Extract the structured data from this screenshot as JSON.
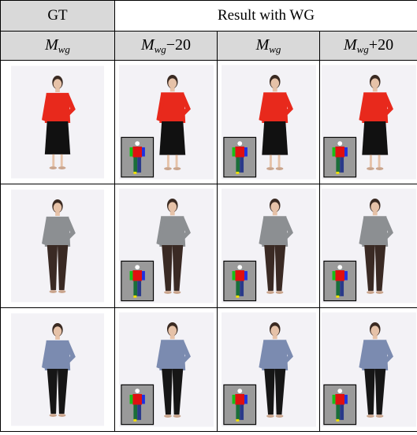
{
  "header": {
    "gt": "GT",
    "result": "Result with WG"
  },
  "subheaders": [
    {
      "base": "M",
      "sub": "wg"
    },
    {
      "base": "M",
      "sub": "wg",
      "suffix": "−20"
    },
    {
      "base": "M",
      "sub": "wg"
    },
    {
      "base": "M",
      "sub": "wg",
      "suffix": "+20"
    }
  ]
}
